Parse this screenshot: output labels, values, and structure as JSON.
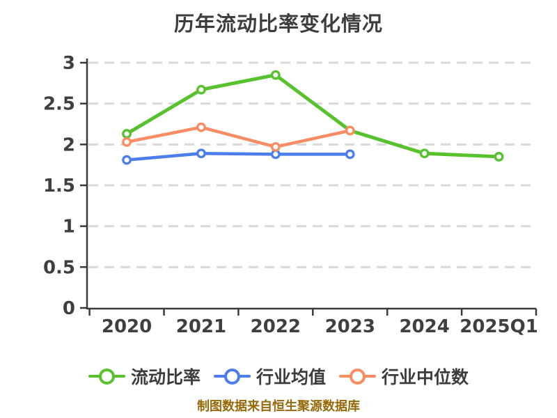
{
  "chart_data": {
    "type": "line",
    "title": "历年流动比率变化情况",
    "caption": "制图数据来自恒生聚源数据库",
    "caption_color": "#96690a",
    "categories": [
      "2020",
      "2021",
      "2022",
      "2023",
      "2024",
      "2025Q1"
    ],
    "series": [
      {
        "name": "流动比率",
        "color": "#57C22E",
        "line_width": 5,
        "values": [
          2.13,
          2.67,
          2.85,
          2.17,
          1.89,
          1.85
        ]
      },
      {
        "name": "行业均值",
        "color": "#4B7DEB",
        "line_width": 4.5,
        "values": [
          1.81,
          1.89,
          1.88,
          1.88,
          null,
          null
        ]
      },
      {
        "name": "行业中位数",
        "color": "#FA8C64",
        "line_width": 4.5,
        "values": [
          2.03,
          2.21,
          1.97,
          2.17,
          null,
          null
        ]
      }
    ],
    "xlabel": "",
    "ylabel": "",
    "ylim": [
      0,
      3
    ],
    "y_ticks": [
      "0",
      "0.5",
      "1",
      "1.5",
      "2",
      "2.5",
      "3"
    ],
    "y_tick_values": [
      0,
      0.5,
      1,
      1.5,
      2,
      2.5,
      3
    ],
    "grid": "dashed horizontal",
    "legend_position": "bottom",
    "axis_color": "#3a3a3a",
    "grid_color": "#d9d9d9",
    "tick_label_color": "#3f3f3f"
  }
}
